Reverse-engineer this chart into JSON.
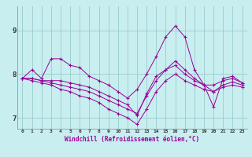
{
  "title": "",
  "xlabel": "Windchill (Refroidissement éolien,°C)",
  "bg_color": "#c8eef0",
  "line_color": "#990099",
  "grid_color": "#99cccc",
  "xlim": [
    -0.5,
    23.5
  ],
  "ylim": [
    6.75,
    9.55
  ],
  "yticks": [
    7,
    8,
    9
  ],
  "xticks": [
    0,
    1,
    2,
    3,
    4,
    5,
    6,
    7,
    8,
    9,
    10,
    11,
    12,
    13,
    14,
    15,
    16,
    17,
    18,
    19,
    20,
    21,
    22,
    23
  ],
  "series1": [
    7.9,
    8.1,
    7.9,
    8.35,
    8.35,
    8.2,
    8.15,
    7.95,
    7.85,
    7.75,
    7.6,
    7.45,
    7.65,
    8.0,
    8.4,
    8.85,
    9.1,
    8.85,
    8.1,
    7.75,
    7.25,
    7.9,
    7.95,
    7.8
  ],
  "series2": [
    7.9,
    7.9,
    7.85,
    7.85,
    7.85,
    7.8,
    7.75,
    7.7,
    7.6,
    7.5,
    7.4,
    7.3,
    7.05,
    7.55,
    7.95,
    8.1,
    8.2,
    8.0,
    7.85,
    7.75,
    7.75,
    7.85,
    7.9,
    7.8
  ],
  "series3": [
    7.9,
    7.85,
    7.8,
    7.75,
    7.65,
    7.6,
    7.5,
    7.45,
    7.35,
    7.2,
    7.1,
    7.0,
    6.85,
    7.2,
    7.6,
    7.85,
    8.0,
    7.85,
    7.75,
    7.65,
    7.6,
    7.7,
    7.75,
    7.7
  ],
  "series4": [
    7.9,
    7.9,
    7.85,
    7.8,
    7.75,
    7.7,
    7.65,
    7.6,
    7.5,
    7.4,
    7.3,
    7.2,
    7.1,
    7.5,
    7.85,
    8.1,
    8.3,
    8.1,
    7.9,
    7.75,
    7.6,
    7.75,
    7.82,
    7.75
  ]
}
